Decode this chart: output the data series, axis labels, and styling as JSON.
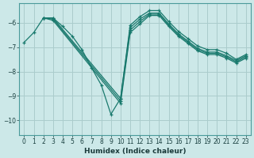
{
  "xlabel": "Humidex (Indice chaleur)",
  "bg_color": "#cce8e8",
  "grid_color": "#aacccc",
  "line_color": "#1a7a6e",
  "xlim": [
    -0.5,
    23.5
  ],
  "ylim": [
    -10.6,
    -5.2
  ],
  "yticks": [
    -10,
    -9,
    -8,
    -7,
    -6
  ],
  "xticks": [
    0,
    1,
    2,
    3,
    4,
    5,
    6,
    7,
    8,
    9,
    10,
    11,
    12,
    13,
    14,
    15,
    16,
    17,
    18,
    19,
    20,
    21,
    22,
    23
  ],
  "lines": [
    {
      "x": [
        0,
        1,
        2,
        3,
        4,
        5,
        6,
        7,
        8,
        9,
        10,
        11,
        12,
        13,
        14,
        15,
        16,
        17,
        18,
        19,
        20,
        21,
        22,
        23
      ],
      "y": [
        -6.8,
        -6.4,
        -5.8,
        -5.8,
        -6.15,
        -6.55,
        -7.1,
        -7.85,
        -8.55,
        -9.75,
        -9.1,
        -6.1,
        -5.75,
        -5.5,
        -5.5,
        -5.95,
        -6.35,
        -6.65,
        -6.95,
        -7.1,
        -7.1,
        -7.25,
        -7.5,
        -7.3
      ]
    },
    {
      "x": [
        2,
        3,
        10,
        11,
        12,
        13,
        14,
        15,
        16,
        17,
        18,
        19,
        20,
        21,
        22,
        23
      ],
      "y": [
        -5.8,
        -5.8,
        -9.1,
        -6.2,
        -5.85,
        -5.6,
        -5.6,
        -6.05,
        -6.45,
        -6.75,
        -7.05,
        -7.2,
        -7.2,
        -7.35,
        -7.55,
        -7.35
      ]
    },
    {
      "x": [
        2,
        3,
        10,
        11,
        12,
        13,
        14,
        15,
        16,
        17,
        18,
        19,
        20,
        21,
        22,
        23
      ],
      "y": [
        -5.8,
        -5.85,
        -9.2,
        -6.3,
        -5.95,
        -5.65,
        -5.65,
        -6.1,
        -6.5,
        -6.8,
        -7.1,
        -7.25,
        -7.25,
        -7.4,
        -7.6,
        -7.4
      ]
    },
    {
      "x": [
        2,
        3,
        10,
        11,
        12,
        13,
        14,
        15,
        16,
        17,
        18,
        19,
        20,
        21,
        22,
        23
      ],
      "y": [
        -5.8,
        -5.9,
        -9.3,
        -6.4,
        -6.05,
        -5.7,
        -5.7,
        -6.15,
        -6.55,
        -6.85,
        -7.15,
        -7.3,
        -7.3,
        -7.45,
        -7.65,
        -7.45
      ]
    }
  ],
  "marker": "+"
}
